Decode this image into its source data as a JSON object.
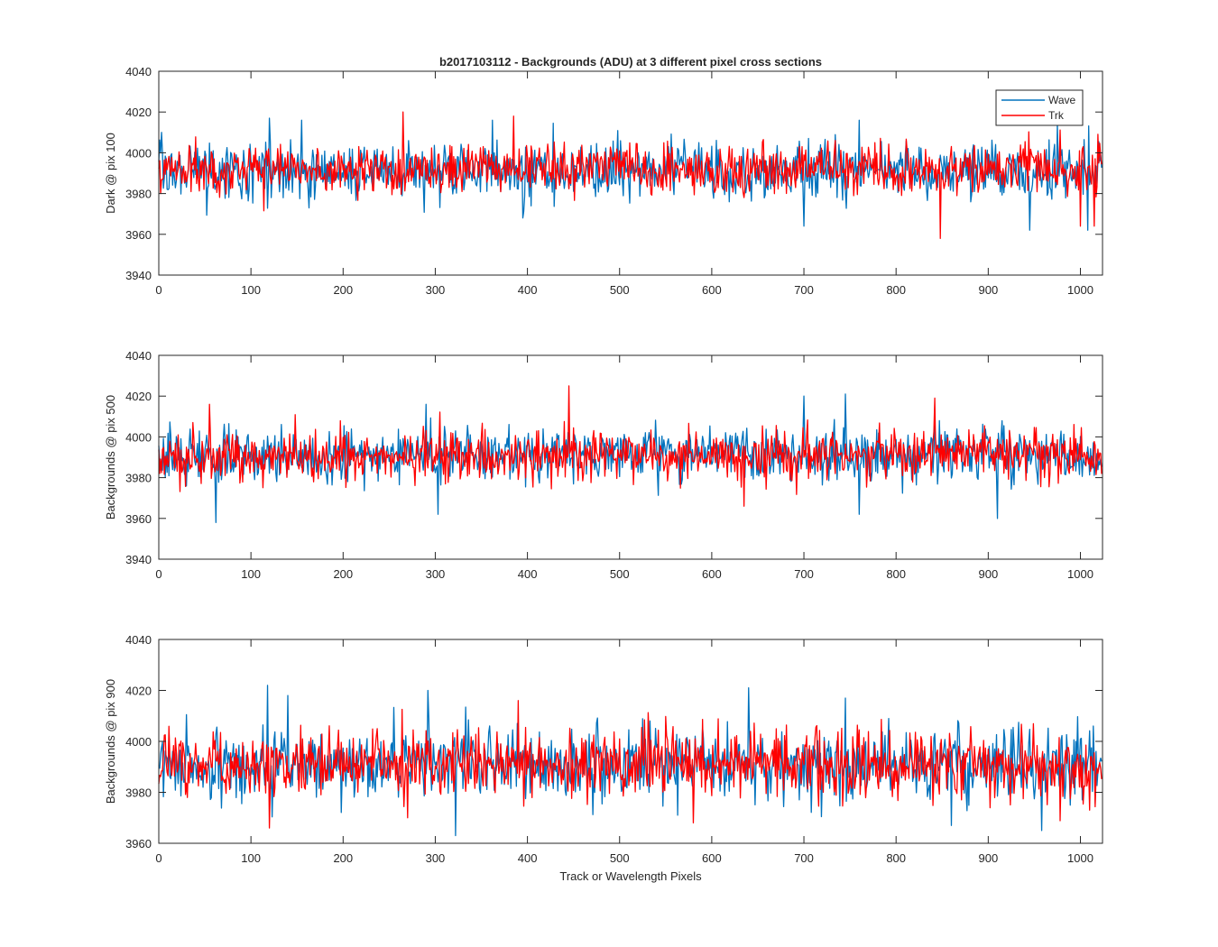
{
  "chart_data": [
    {
      "type": "line",
      "title": "b2017103112 - Backgrounds (ADU) at 3 different pixel cross sections",
      "xlabel": "",
      "ylabel": "Dark @ pix 100",
      "xlim": [
        0,
        1024
      ],
      "ylim": [
        3940,
        4040
      ],
      "xticks": [
        0,
        100,
        200,
        300,
        400,
        500,
        600,
        700,
        800,
        900,
        1000
      ],
      "yticks": [
        3940,
        3960,
        3980,
        4000,
        4020,
        4040
      ],
      "legend": {
        "position": "top-right",
        "entries": [
          "Wave",
          "Trk"
        ]
      },
      "grid": false,
      "series": [
        {
          "name": "Wave",
          "color": "#0072BD",
          "n": 1024,
          "mean": 3991,
          "std": 7,
          "min": 3962,
          "max": 4017,
          "spikes": [
            [
              3,
              4010
            ],
            [
              120,
              4017
            ],
            [
              155,
              4016
            ],
            [
              362,
              4016
            ],
            [
              395,
              3968
            ],
            [
              700,
              3964
            ],
            [
              760,
              4016
            ],
            [
              945,
              3962
            ],
            [
              975,
              4014
            ],
            [
              1008,
              3962
            ]
          ]
        },
        {
          "name": "Trk",
          "color": "#FF0000",
          "n": 1024,
          "mean": 3992,
          "std": 6,
          "min": 3958,
          "max": 4020,
          "spikes": [
            [
              2,
              3980
            ],
            [
              265,
              4020
            ],
            [
              385,
              4018
            ],
            [
              848,
              3958
            ],
            [
              1000,
              3964
            ],
            [
              1015,
              3964
            ]
          ]
        }
      ]
    },
    {
      "type": "line",
      "title": "",
      "xlabel": "",
      "ylabel": "Backgrounds @ pix 500",
      "xlim": [
        0,
        1024
      ],
      "ylim": [
        3940,
        4040
      ],
      "xticks": [
        0,
        100,
        200,
        300,
        400,
        500,
        600,
        700,
        800,
        900,
        1000
      ],
      "yticks": [
        3940,
        3960,
        3980,
        4000,
        4020,
        4040
      ],
      "grid": false,
      "series": [
        {
          "name": "Wave",
          "color": "#0072BD",
          "n": 1024,
          "mean": 3991,
          "std": 6.5,
          "min": 3958,
          "max": 4021,
          "spikes": [
            [
              62,
              3958
            ],
            [
              290,
              4016
            ],
            [
              303,
              3962
            ],
            [
              700,
              4020
            ],
            [
              745,
              4021
            ],
            [
              760,
              3962
            ],
            [
              910,
              3960
            ]
          ]
        },
        {
          "name": "Trk",
          "color": "#FF0000",
          "n": 1024,
          "mean": 3991,
          "std": 6,
          "min": 3966,
          "max": 4025,
          "spikes": [
            [
              55,
              4016
            ],
            [
              445,
              4025
            ],
            [
              635,
              3966
            ],
            [
              842,
              4019
            ]
          ]
        }
      ]
    },
    {
      "type": "line",
      "title": "",
      "xlabel": "Track or Wavelength Pixels",
      "ylabel": "Backgrounds @ pix 900",
      "xlim": [
        0,
        1024
      ],
      "ylim": [
        3960,
        4040
      ],
      "xticks": [
        0,
        100,
        200,
        300,
        400,
        500,
        600,
        700,
        800,
        900,
        1000
      ],
      "yticks": [
        3960,
        3980,
        4000,
        4020,
        4040
      ],
      "grid": false,
      "series": [
        {
          "name": "Wave",
          "color": "#0072BD",
          "n": 1024,
          "mean": 3991,
          "std": 7,
          "min": 3963,
          "max": 4022,
          "spikes": [
            [
              118,
              4022
            ],
            [
              140,
              4018
            ],
            [
              292,
              4020
            ],
            [
              322,
              3963
            ],
            [
              640,
              4021
            ],
            [
              745,
              4017
            ],
            [
              860,
              3967
            ],
            [
              958,
              3965
            ]
          ]
        },
        {
          "name": "Trk",
          "color": "#FF0000",
          "n": 1024,
          "mean": 3991,
          "std": 6.5,
          "min": 3966,
          "max": 4016,
          "spikes": [
            [
              120,
              3966
            ],
            [
              270,
              3970
            ],
            [
              390,
              4016
            ],
            [
              580,
              3968
            ],
            [
              1010,
              3973
            ]
          ]
        }
      ]
    }
  ]
}
